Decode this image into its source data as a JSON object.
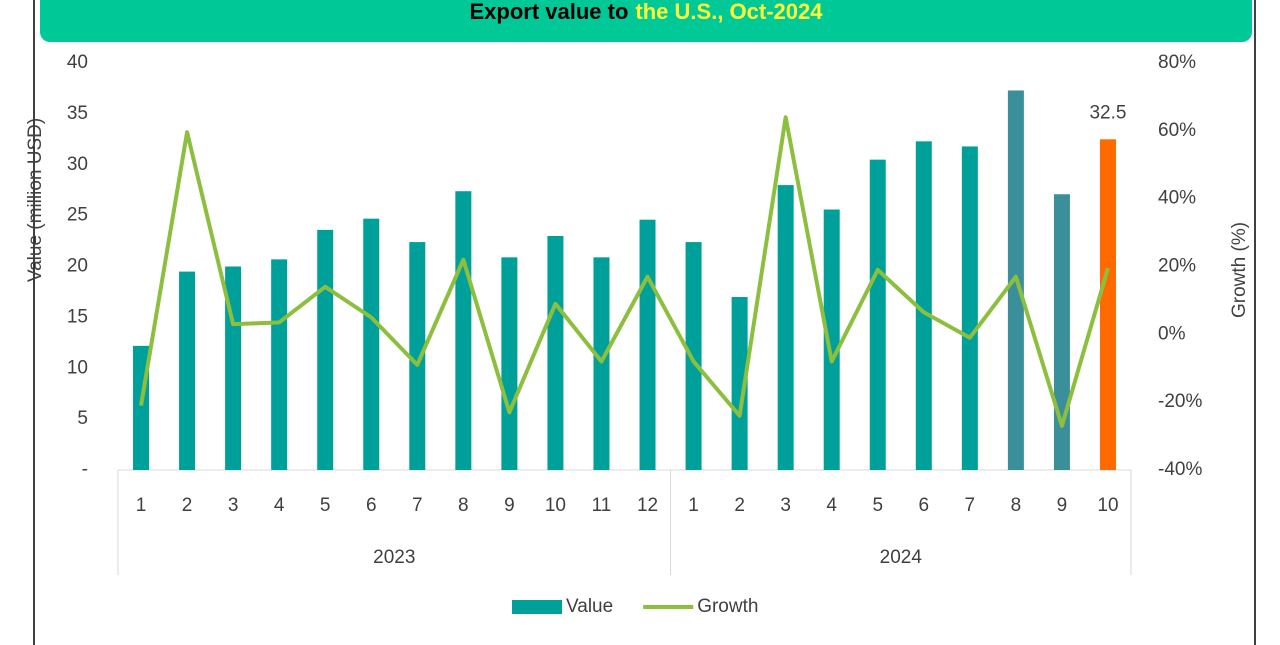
{
  "chart_data": {
    "type": "bar_line",
    "title": [
      "Export value to",
      "the U.S., Oct-2024"
    ],
    "y_axis_label": "Value (million USD)",
    "y2_axis_label": "Growth (%)",
    "groups": [
      {
        "name": "2023",
        "categories": [
          "1",
          "2",
          "3",
          "4",
          "5",
          "6",
          "7",
          "8",
          "9",
          "10",
          "11",
          "12"
        ]
      },
      {
        "name": "2024",
        "categories": [
          "1",
          "2",
          "3",
          "4",
          "5",
          "6",
          "7",
          "8",
          "9",
          "10"
        ]
      }
    ],
    "series": [
      {
        "name": "Value",
        "type": "bar",
        "color": "#00a09a",
        "bar_colors": [
          "#00a09a",
          "#00a09a",
          "#00a09a",
          "#00a09a",
          "#00a09a",
          "#00a09a",
          "#00a09a",
          "#00a09a",
          "#00a09a",
          "#00a09a",
          "#00a09a",
          "#00a09a",
          "#00a09a",
          "#00a09a",
          "#00a09a",
          "#00a09a",
          "#00a09a",
          "#00a09a",
          "#00a09a",
          "#3a8f9a",
          "#3a8f9a",
          "#ff6a00"
        ],
        "values": [
          12.2,
          19.5,
          20.0,
          20.7,
          23.6,
          24.7,
          22.4,
          27.4,
          20.9,
          23.0,
          20.9,
          24.6,
          22.4,
          17.0,
          28.0,
          25.6,
          30.5,
          32.3,
          31.8,
          37.3,
          27.1,
          32.5
        ],
        "value_labels": [
          null,
          null,
          null,
          null,
          null,
          null,
          null,
          null,
          null,
          null,
          null,
          null,
          null,
          null,
          null,
          null,
          null,
          null,
          null,
          null,
          null,
          "32.5"
        ]
      },
      {
        "name": "Growth",
        "type": "line",
        "axis": "y2",
        "color": "#8dbf3f",
        "values": [
          -21,
          59.6,
          3,
          3.5,
          14,
          5,
          -9,
          22,
          -23,
          9,
          -8,
          17,
          -8,
          -24,
          64,
          -8,
          19,
          6.5,
          -1,
          17,
          -27,
          19.5
        ]
      }
    ],
    "ylim": [
      0,
      40
    ],
    "yticks": [
      {
        "value": 0,
        "label": "-"
      },
      5,
      10,
      15,
      20,
      25,
      30,
      35,
      40
    ],
    "y2lim": [
      -40,
      80
    ],
    "y2ticks": [
      {
        "value": -40,
        "label": "-40%"
      },
      {
        "value": -20,
        "label": "-20%"
      },
      {
        "value": 0,
        "label": "0%"
      },
      {
        "value": 20,
        "label": "20%"
      },
      {
        "value": 40,
        "label": "40%"
      },
      {
        "value": 60,
        "label": "60%"
      },
      {
        "value": 80,
        "label": "80%"
      }
    ]
  }
}
